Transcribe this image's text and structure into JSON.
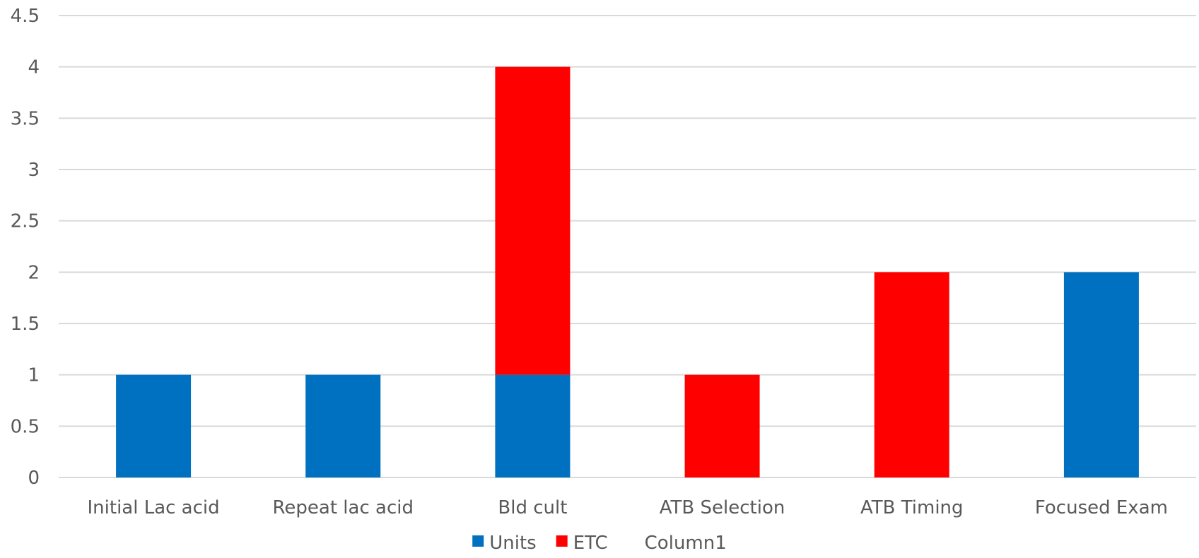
{
  "chart_data": {
    "type": "bar",
    "stacked": true,
    "categories": [
      "Initial Lac acid",
      "Repeat lac acid",
      "Bld cult",
      "ATB Selection",
      "ATB Timing",
      "Focused Exam"
    ],
    "series": [
      {
        "name": "Units",
        "color": "#0070c0",
        "values": [
          1,
          1,
          1,
          0,
          0,
          2
        ]
      },
      {
        "name": "ETC",
        "color": "#ff0000",
        "values": [
          0,
          0,
          3,
          1,
          2,
          0
        ]
      },
      {
        "name": "Column1",
        "color": "#a5a5a5",
        "values": [
          0,
          0,
          0,
          0,
          0,
          0
        ]
      }
    ],
    "ylim": [
      0,
      4.5
    ],
    "yticks": [
      "0",
      "0.5",
      "1",
      "1.5",
      "2",
      "2.5",
      "3",
      "3.5",
      "4",
      "4.5"
    ],
    "grid": true,
    "legend": "bottom",
    "title": "",
    "xlabel": "",
    "ylabel": ""
  }
}
